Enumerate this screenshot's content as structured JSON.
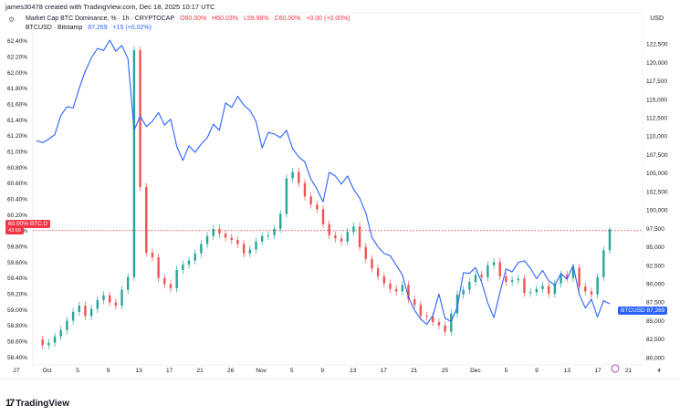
{
  "header": {
    "caption": "james30478 created with TradingView.com, Dec 18, 2025 10:17 UTC",
    "legend_1": {
      "name": "Market Cap BTC Dominance, % · 1h · CRYPTOCAP",
      "o": "O60.00%",
      "h": "H60.03%",
      "l": "L59.98%",
      "c": "C60.00%",
      "chg": "+0.00 (+0.00%)"
    },
    "legend_2": {
      "name": "BTCUSD · Bitstamp",
      "value": "87,269",
      "chg": "+15 (+0.02%)"
    },
    "unit": "USD"
  },
  "tags": {
    "left_value": "60.00% BTC.D",
    "left_sub": "43:59",
    "right_value": "BTCUSD 87,269"
  },
  "footer": {
    "logo_text": "TradingView"
  },
  "chart_data": {
    "type": "line",
    "left_axis": {
      "ticks": [
        "62.40%",
        "62.20%",
        "62.00%",
        "61.80%",
        "61.60%",
        "61.40%",
        "61.20%",
        "61.00%",
        "60.80%",
        "60.60%",
        "60.40%",
        "60.20%",
        "60.00%",
        "59.80%",
        "59.60%",
        "59.40%",
        "59.20%",
        "59.00%",
        "58.80%",
        "58.60%",
        "58.40%"
      ],
      "range": [
        58.3,
        62.5
      ]
    },
    "right_axis": {
      "ticks": [
        "122,500",
        "120,000",
        "117,500",
        "115,000",
        "112,500",
        "110,000",
        "107,500",
        "105,000",
        "102,500",
        "100,000",
        "97,500",
        "95,000",
        "92,500",
        "90,000",
        "87,500",
        "85,000",
        "82,500",
        "80,000"
      ],
      "range": [
        79000,
        124000
      ]
    },
    "x_axis": {
      "ticks": [
        "27",
        "Oct",
        "5",
        "9",
        "13",
        "17",
        "21",
        "26",
        "Nov",
        "5",
        "9",
        "13",
        "17",
        "21",
        "25",
        "Dec",
        "5",
        "9",
        "13",
        "17",
        "21",
        "4"
      ]
    },
    "current_level_line": {
      "value": 60.0,
      "color": "#f23645"
    },
    "series": [
      {
        "name": "BTCUSD · Bitstamp",
        "axis": "right",
        "color": "#2962ff",
        "values": [
          109400,
          109100,
          109600,
          110200,
          112800,
          114000,
          113800,
          116500,
          118800,
          120600,
          121900,
          121600,
          123000,
          121500,
          122300,
          120500,
          110800,
          112700,
          111300,
          112000,
          113200,
          111500,
          112300,
          108600,
          106700,
          108700,
          107800,
          108900,
          109800,
          111600,
          110800,
          114500,
          113900,
          115400,
          114200,
          113500,
          112000,
          108400,
          110500,
          110300,
          109800,
          110800,
          108300,
          107200,
          106500,
          104200,
          102800,
          101100,
          105100,
          104600,
          103500,
          104600,
          102800,
          101600,
          99600,
          96300,
          95000,
          94100,
          93800,
          92500,
          91200,
          88200,
          86400,
          85200,
          84500,
          85700,
          88600,
          85300,
          84900,
          86800,
          91500,
          91400,
          92200,
          90200,
          87400,
          85400,
          88800,
          92000,
          91600,
          92900,
          93100,
          92100,
          90700,
          91800,
          90400,
          89800,
          91400,
          90600,
          92500,
          88600,
          86700,
          87900,
          85500,
          87700,
          87269
        ],
        "markers_at": {}
      },
      {
        "name": "Market Cap BTC Dominance, %",
        "axis": "left",
        "color": "#26a69a",
        "down_color": "#ef5350",
        "values": [
          58.62,
          58.55,
          58.58,
          58.66,
          58.74,
          58.86,
          58.97,
          59.05,
          58.92,
          59.01,
          59.12,
          59.18,
          59.09,
          59.05,
          59.25,
          59.41,
          62.28,
          60.55,
          59.72,
          59.66,
          59.4,
          59.32,
          59.27,
          59.5,
          59.57,
          59.62,
          59.71,
          59.83,
          59.93,
          60.02,
          59.96,
          59.91,
          59.88,
          59.83,
          59.71,
          59.76,
          59.86,
          59.93,
          59.94,
          60.02,
          60.21,
          60.66,
          60.74,
          60.6,
          60.43,
          60.33,
          60.27,
          60.08,
          59.94,
          59.9,
          59.86,
          59.98,
          60.05,
          59.79,
          59.64,
          59.52,
          59.42,
          59.33,
          59.26,
          59.23,
          59.31,
          59.13,
          59.06,
          58.92,
          58.91,
          58.84,
          58.8,
          58.72,
          58.95,
          59.19,
          59.25,
          59.35,
          59.44,
          59.41,
          59.56,
          59.6,
          59.42,
          59.35,
          59.37,
          59.39,
          59.21,
          59.22,
          59.26,
          59.3,
          59.2,
          59.33,
          59.44,
          59.4,
          59.53,
          59.29,
          59.23,
          59.19,
          59.41,
          59.75,
          60.0
        ]
      }
    ]
  }
}
